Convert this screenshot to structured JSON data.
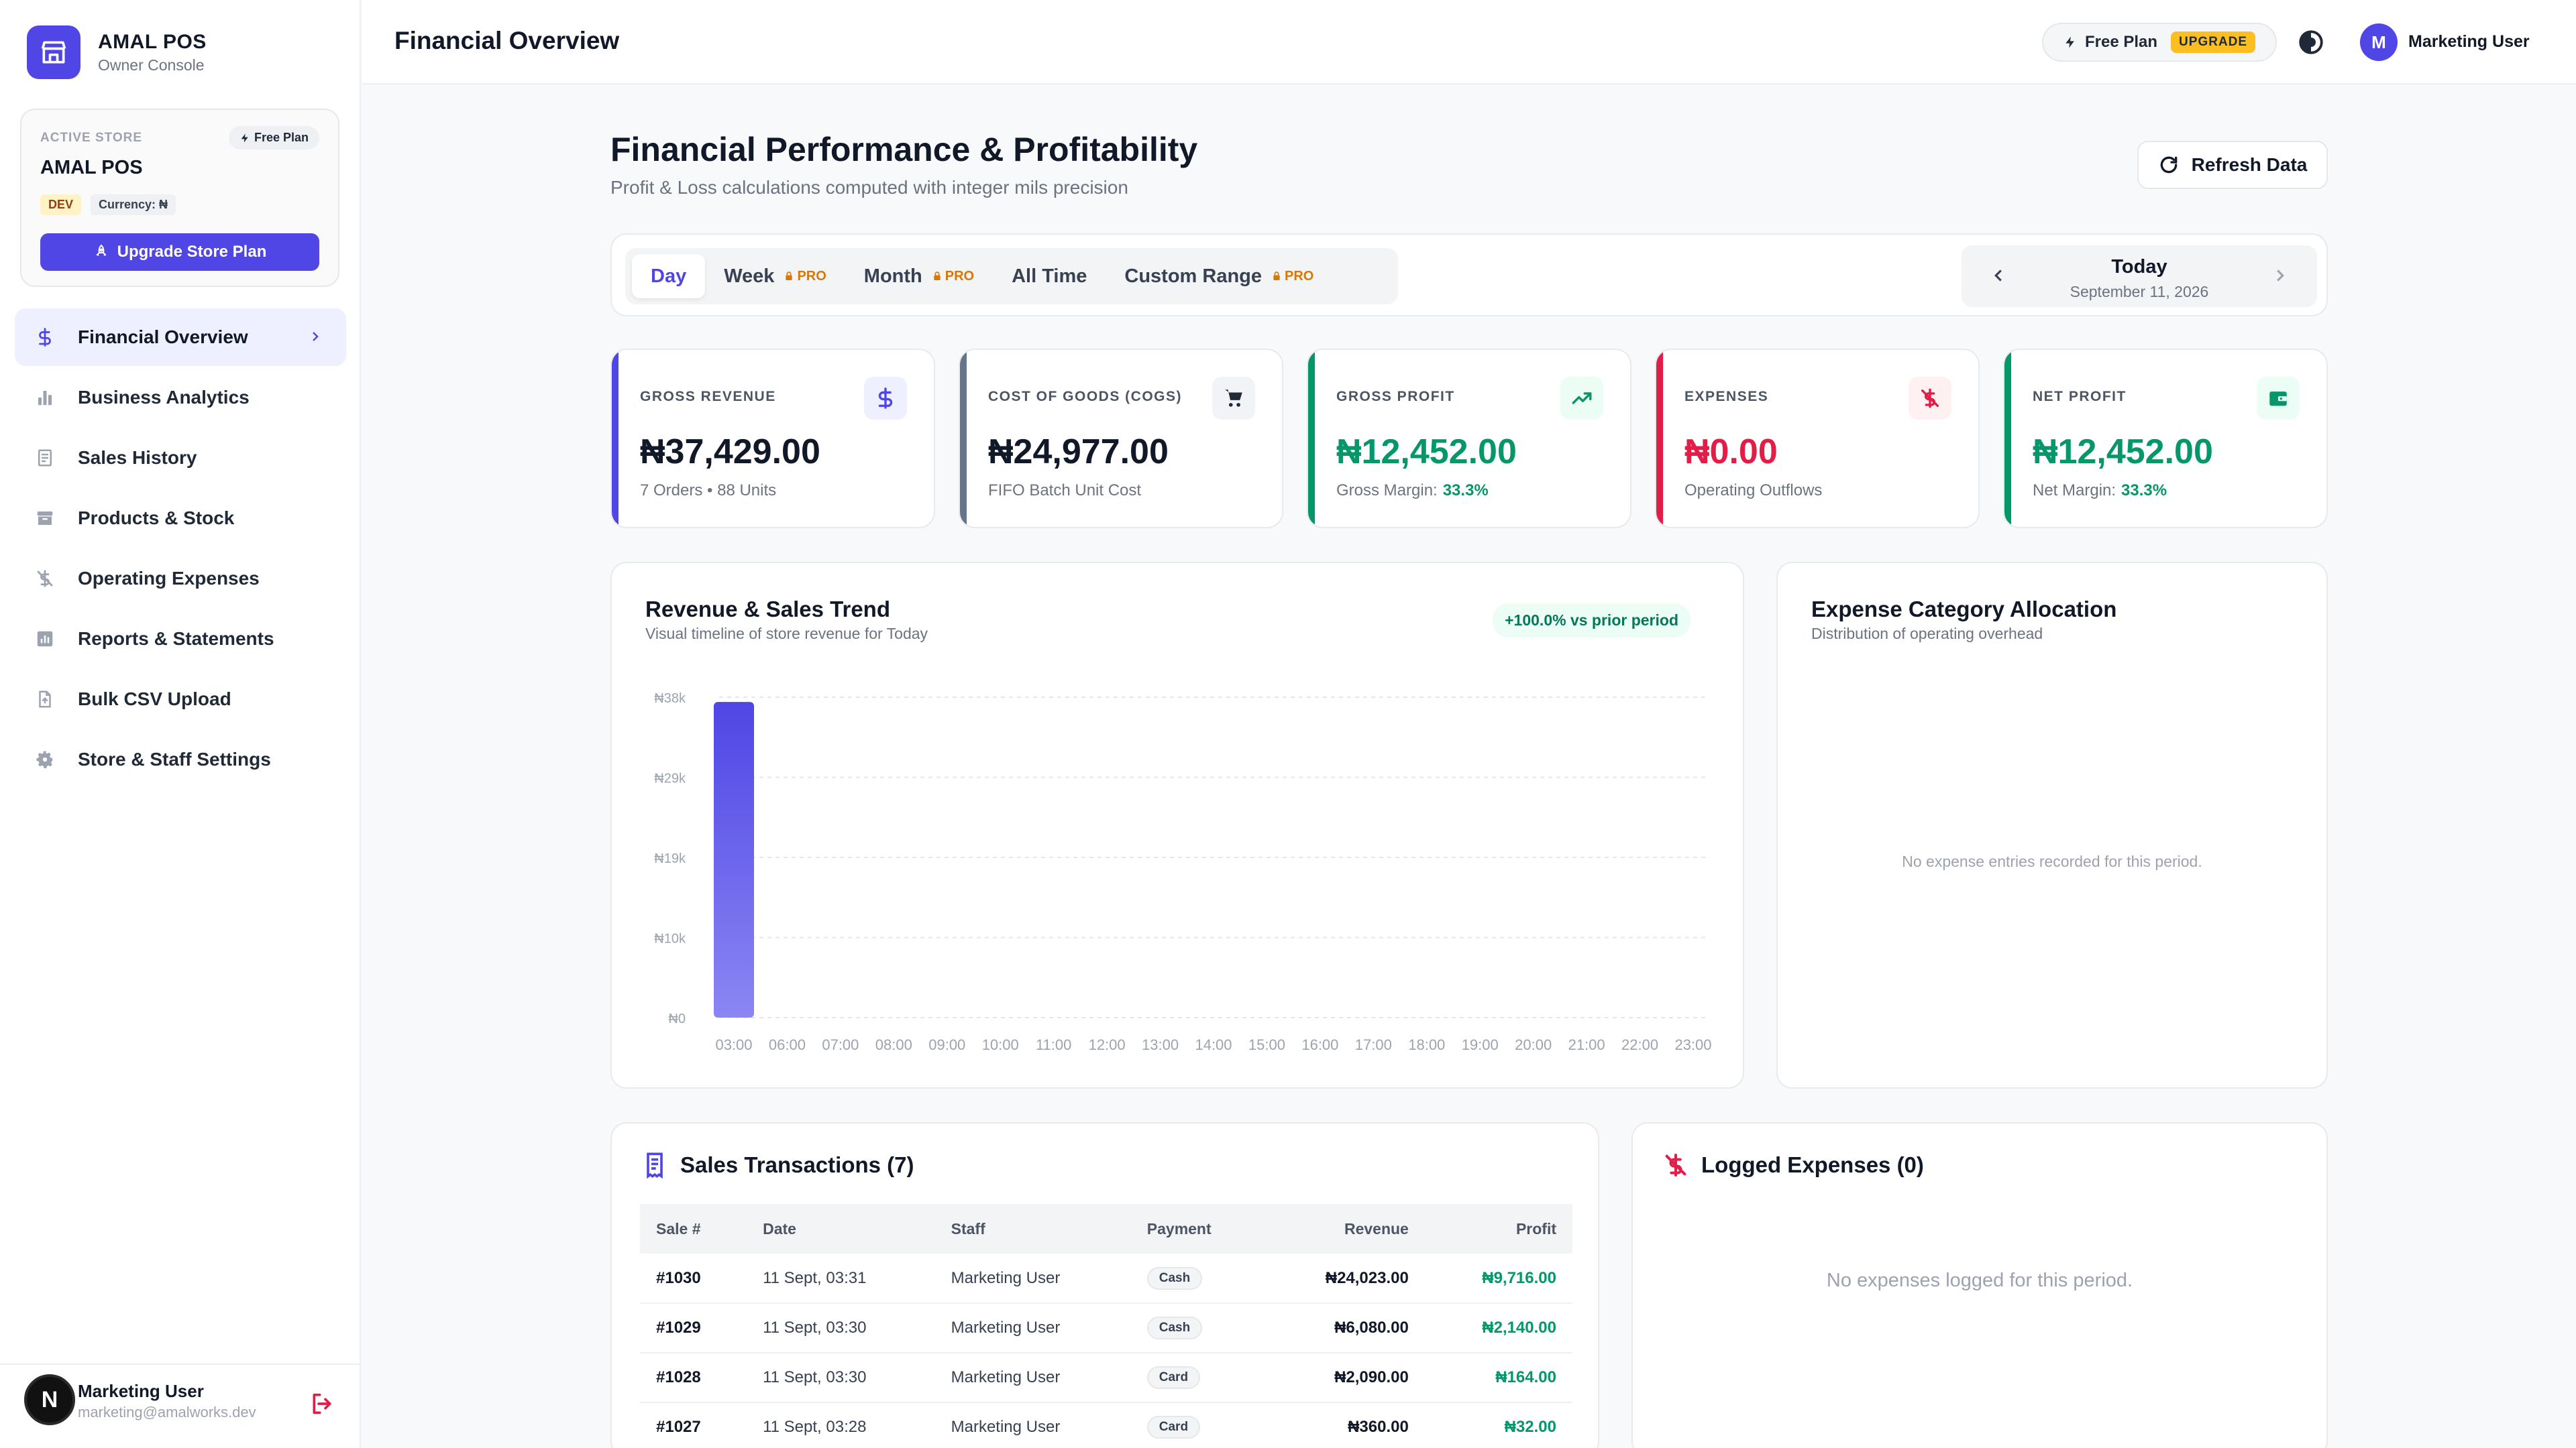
{
  "brand": {
    "name": "AMAL POS",
    "subtitle": "Owner Console"
  },
  "store": {
    "label": "ACTIVE STORE",
    "plan": "Free Plan",
    "name": "AMAL POS",
    "env_badge": "DEV",
    "currency_badge": "Currency: ₦",
    "upgrade_label": "Upgrade Store Plan"
  },
  "nav": [
    {
      "label": "Financial Overview",
      "icon": "dollar-icon",
      "active": true
    },
    {
      "label": "Business Analytics",
      "icon": "bar-chart-icon"
    },
    {
      "label": "Sales History",
      "icon": "receipt-icon"
    },
    {
      "label": "Products & Stock",
      "icon": "archive-icon"
    },
    {
      "label": "Operating Expenses",
      "icon": "money-off-icon"
    },
    {
      "label": "Reports & Statements",
      "icon": "report-icon"
    },
    {
      "label": "Bulk CSV Upload",
      "icon": "file-upload-icon"
    },
    {
      "label": "Store & Staff Settings",
      "icon": "gear-icon"
    }
  ],
  "footer_user": {
    "initial": "N",
    "name": "Marketing User",
    "email": "marketing@amalworks.dev"
  },
  "topbar": {
    "title": "Financial Overview",
    "plan_label": "Free Plan",
    "upgrade_label": "UPGRADE",
    "user_initial": "M",
    "user_name": "Marketing User"
  },
  "header": {
    "title": "Financial Performance & Profitability",
    "subtitle": "Profit & Loss calculations computed with integer mils precision",
    "refresh_label": "Refresh Data"
  },
  "period_tabs": [
    {
      "label": "Day",
      "active": true,
      "pro": false
    },
    {
      "label": "Week",
      "pro": true
    },
    {
      "label": "Month",
      "pro": true
    },
    {
      "label": "All Time",
      "pro": false
    },
    {
      "label": "Custom Range",
      "pro": true
    }
  ],
  "pro_label": "PRO",
  "date_nav": {
    "title": "Today",
    "date": "September 11, 2026"
  },
  "kpis": [
    {
      "label": "GROSS REVENUE",
      "value": "₦37,429.00",
      "note": "7 Orders • 88 Units",
      "note_highlight": "",
      "bar": "#4f46e5",
      "icon_bg": "#eef0ff",
      "value_color": "#111827",
      "icon": "dollar-icon"
    },
    {
      "label": "COST OF GOODS (COGS)",
      "value": "₦24,977.00",
      "note": "FIFO Batch Unit Cost",
      "note_highlight": "",
      "bar": "#64748b",
      "icon_bg": "#f1f3f6",
      "value_color": "#111827",
      "icon": "cart-icon"
    },
    {
      "label": "GROSS PROFIT",
      "value": "₦12,452.00",
      "note": "Gross Margin:",
      "note_highlight": "33.3%",
      "bar": "#059669",
      "icon_bg": "#ecfdf5",
      "value_color": "#059669",
      "icon": "trending-up-icon"
    },
    {
      "label": "EXPENSES",
      "value": "₦0.00",
      "note": "Operating Outflows",
      "note_highlight": "",
      "bar": "#e11d48",
      "icon_bg": "#fff1f2",
      "value_color": "#e11d48",
      "icon": "money-off-icon"
    },
    {
      "label": "NET PROFIT",
      "value": "₦12,452.00",
      "note": "Net Margin:",
      "note_highlight": "33.3%",
      "bar": "#059669",
      "icon_bg": "#ecfdf5",
      "value_color": "#059669",
      "icon": "wallet-icon"
    }
  ],
  "trend": {
    "title": "Revenue & Sales Trend",
    "subtitle": "Visual timeline of store revenue for Today",
    "badge": "+100.0% vs prior period"
  },
  "chart_data": {
    "type": "bar",
    "title": "Revenue & Sales Trend",
    "categories": [
      "03:00",
      "06:00",
      "07:00",
      "08:00",
      "09:00",
      "10:00",
      "11:00",
      "12:00",
      "13:00",
      "14:00",
      "15:00",
      "16:00",
      "17:00",
      "18:00",
      "19:00",
      "20:00",
      "21:00",
      "22:00",
      "23:00"
    ],
    "values": [
      37429,
      0,
      0,
      0,
      0,
      0,
      0,
      0,
      0,
      0,
      0,
      0,
      0,
      0,
      0,
      0,
      0,
      0,
      0
    ],
    "y_ticks": [
      "₦0",
      "₦10k",
      "₦19k",
      "₦29k",
      "₦38k"
    ],
    "ylim": [
      0,
      38000
    ],
    "grid": true,
    "bar_color_top": "#4f46e5",
    "bar_color_bottom": "#8b86f3"
  },
  "allocation": {
    "title": "Expense Category Allocation",
    "subtitle": "Distribution of operating overhead",
    "empty": "No expense entries recorded for this period."
  },
  "transactions": {
    "title": "Sales Transactions (7)",
    "columns": [
      "Sale #",
      "Date",
      "Staff",
      "Payment",
      "Revenue",
      "Profit"
    ],
    "rows": [
      {
        "sale": "#1030",
        "date": "11 Sept, 03:31",
        "staff": "Marketing User",
        "payment": "Cash",
        "revenue": "₦24,023.00",
        "profit": "₦9,716.00"
      },
      {
        "sale": "#1029",
        "date": "11 Sept, 03:30",
        "staff": "Marketing User",
        "payment": "Cash",
        "revenue": "₦6,080.00",
        "profit": "₦2,140.00"
      },
      {
        "sale": "#1028",
        "date": "11 Sept, 03:30",
        "staff": "Marketing User",
        "payment": "Card",
        "revenue": "₦2,090.00",
        "profit": "₦164.00"
      },
      {
        "sale": "#1027",
        "date": "11 Sept, 03:28",
        "staff": "Marketing User",
        "payment": "Card",
        "revenue": "₦360.00",
        "profit": "₦32.00"
      }
    ]
  },
  "expenses": {
    "title": "Logged Expenses (0)",
    "empty": "No expenses logged for this period."
  }
}
